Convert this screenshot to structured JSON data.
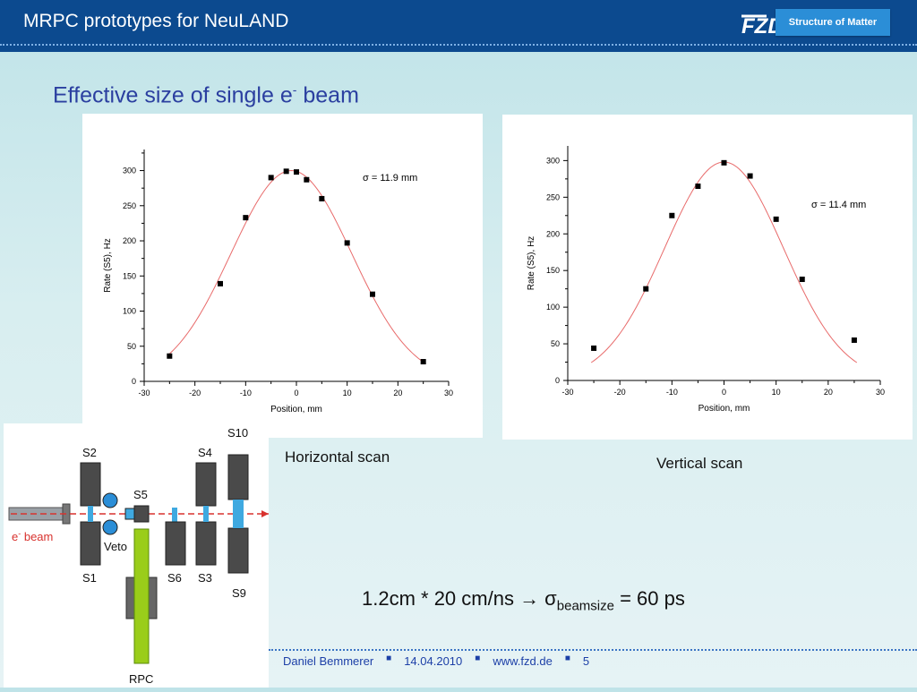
{
  "header": {
    "title": "MRPC prototypes for NeuLAND",
    "logo_text": "FZD",
    "brand_label": "Structure of Matter"
  },
  "slide_title": {
    "text": "Effective size of single e",
    "superscript": "-",
    "suffix": " beam"
  },
  "captions": {
    "horizontal": "Horizontal scan",
    "vertical": "Vertical scan"
  },
  "formula": {
    "prefix": "1.2cm * 20 cm/ns → σ",
    "subscript": "beamsize",
    "suffix": " = 60 ps"
  },
  "diagram": {
    "labels": [
      "S2",
      "S1",
      "S5",
      "Veto",
      "S6",
      "S3",
      "S4",
      "S10",
      "S9",
      "RPC"
    ],
    "beam_label": "e",
    "beam_label_sup": "-",
    "beam_label_suffix": " beam"
  },
  "footer": {
    "author": "Daniel Bemmerer",
    "date": "14.04.2010",
    "url": "www.fzd.de",
    "page": "5",
    "separator": "■"
  },
  "colors": {
    "header_bg": "#0c4a8f",
    "brand_tag": "#2b8ed7",
    "title": "#2b3fa0",
    "fit_line": "#e86a6a",
    "footer_text": "#1c3fa7",
    "rpc": "#9acd1a",
    "scint": "#3fa9e0"
  },
  "chart_data": [
    {
      "type": "scatter",
      "title": "",
      "xlabel": "Position, mm",
      "ylabel": "Rate (S5), Hz",
      "xlim": [
        -30,
        30
      ],
      "ylim": [
        0,
        330
      ],
      "xticks": [
        -30,
        -20,
        -10,
        0,
        10,
        20,
        30
      ],
      "yticks": [
        0,
        50,
        100,
        150,
        200,
        250,
        300
      ],
      "annotation": "σ = 11.9 mm",
      "points": [
        [
          -25,
          36
        ],
        [
          -15,
          139
        ],
        [
          -10,
          233
        ],
        [
          -5,
          290
        ],
        [
          -2,
          299
        ],
        [
          0,
          298
        ],
        [
          2,
          287
        ],
        [
          5,
          260
        ],
        [
          10,
          197
        ],
        [
          15,
          124
        ],
        [
          25,
          28
        ]
      ],
      "fit": {
        "type": "gaussian",
        "amplitude": 300,
        "mean": -1,
        "sigma": 11.9,
        "color": "#e86a6a"
      }
    },
    {
      "type": "scatter",
      "title": "",
      "xlabel": "Position, mm",
      "ylabel": "Rate (S5), Hz",
      "xlim": [
        -30,
        30
      ],
      "ylim": [
        0,
        320
      ],
      "xticks": [
        -30,
        -20,
        -10,
        0,
        10,
        20,
        30
      ],
      "yticks": [
        0,
        50,
        100,
        150,
        200,
        250,
        300
      ],
      "annotation": "σ = 11.4 mm",
      "points": [
        [
          -25,
          44
        ],
        [
          -15,
          125
        ],
        [
          -10,
          225
        ],
        [
          -5,
          265
        ],
        [
          0,
          297
        ],
        [
          5,
          279
        ],
        [
          10,
          220
        ],
        [
          15,
          138
        ],
        [
          25,
          55
        ]
      ],
      "fit": {
        "type": "gaussian",
        "amplitude": 298,
        "mean": 0,
        "sigma": 11.4,
        "color": "#e86a6a"
      }
    }
  ]
}
